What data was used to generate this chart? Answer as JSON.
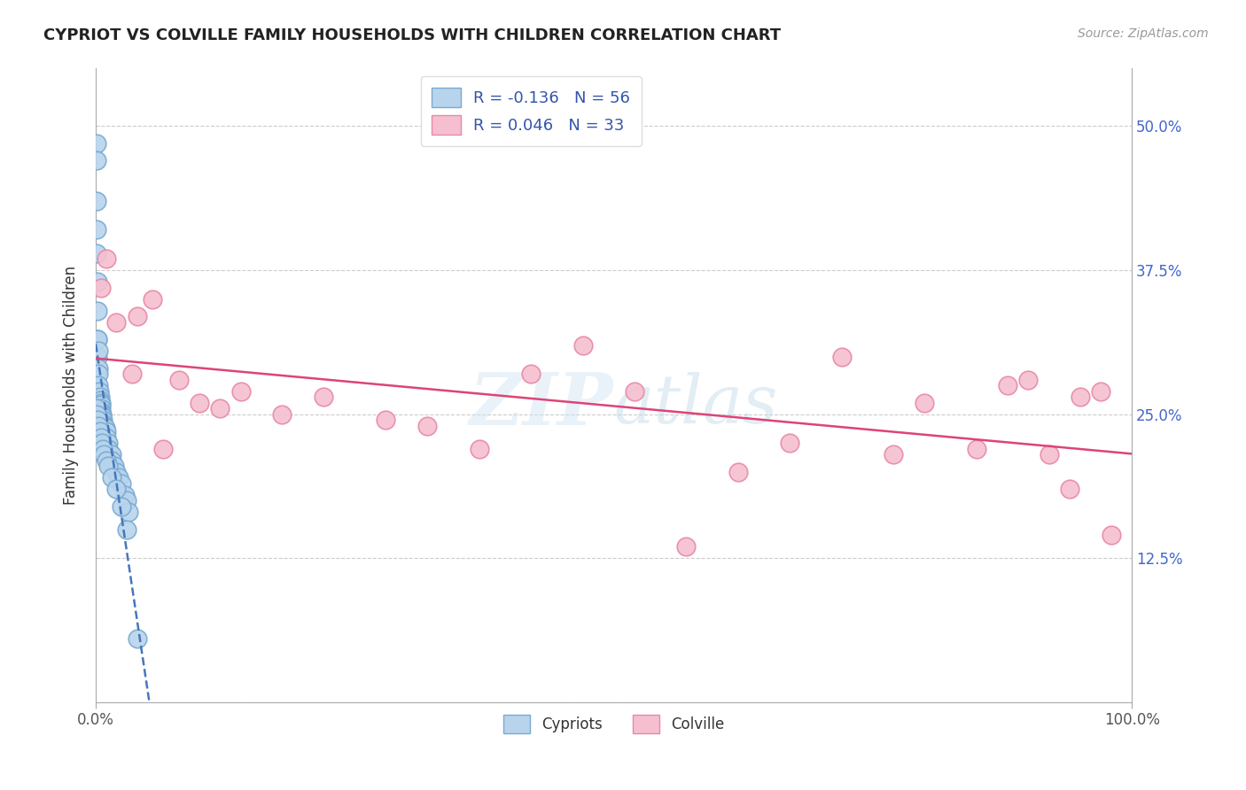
{
  "title": "CYPRIOT VS COLVILLE FAMILY HOUSEHOLDS WITH CHILDREN CORRELATION CHART",
  "source": "Source: ZipAtlas.com",
  "ylabel": "Family Households with Children",
  "xlim": [
    0.0,
    100.0
  ],
  "ylim": [
    0.0,
    55.0
  ],
  "x_ticks": [
    0.0,
    100.0
  ],
  "x_tick_labels": [
    "0.0%",
    "100.0%"
  ],
  "y_ticks": [
    0.0,
    12.5,
    25.0,
    37.5,
    50.0
  ],
  "y_tick_labels": [
    "",
    "12.5%",
    "25.0%",
    "37.5%",
    "50.0%"
  ],
  "cypriot_color": "#b8d4ed",
  "colville_color": "#f5bfd0",
  "cypriot_edge": "#7aaad0",
  "colville_edge": "#e888a8",
  "cypriot_R": -0.136,
  "cypriot_N": 56,
  "colville_R": 0.046,
  "colville_N": 33,
  "cypriot_line_color": "#4477bb",
  "colville_line_color": "#dd4477",
  "legend_label_cypriot": "Cypriots",
  "legend_label_colville": "Colville",
  "cypriot_x": [
    0.05,
    0.05,
    0.05,
    0.1,
    0.1,
    0.15,
    0.15,
    0.2,
    0.2,
    0.2,
    0.25,
    0.25,
    0.3,
    0.3,
    0.35,
    0.4,
    0.4,
    0.5,
    0.5,
    0.5,
    0.5,
    0.6,
    0.6,
    0.7,
    0.7,
    0.8,
    0.9,
    1.0,
    1.0,
    1.2,
    1.2,
    1.5,
    1.5,
    1.8,
    2.0,
    2.2,
    2.5,
    2.8,
    3.0,
    3.2,
    0.05,
    0.1,
    0.2,
    0.3,
    0.4,
    0.5,
    0.6,
    0.7,
    0.8,
    1.0,
    1.2,
    1.5,
    2.0,
    2.5,
    3.0,
    4.0
  ],
  "cypriot_y": [
    48.5,
    47.0,
    43.5,
    41.0,
    39.0,
    36.5,
    34.0,
    31.5,
    30.0,
    31.5,
    30.5,
    29.0,
    28.5,
    27.5,
    27.0,
    26.5,
    26.2,
    26.0,
    25.8,
    25.5,
    25.2,
    25.0,
    24.8,
    24.5,
    24.2,
    24.0,
    23.8,
    23.5,
    23.0,
    22.5,
    22.0,
    21.5,
    21.0,
    20.5,
    20.0,
    19.5,
    19.0,
    18.0,
    17.5,
    16.5,
    25.5,
    25.0,
    24.5,
    24.0,
    23.5,
    23.0,
    22.5,
    22.0,
    21.5,
    21.0,
    20.5,
    19.5,
    18.5,
    17.0,
    15.0,
    5.5
  ],
  "colville_x": [
    0.5,
    1.0,
    2.0,
    3.5,
    5.5,
    8.0,
    10.0,
    14.0,
    18.0,
    22.0,
    28.0,
    32.0,
    37.0,
    42.0,
    47.0,
    52.0,
    57.0,
    62.0,
    67.0,
    72.0,
    77.0,
    80.0,
    85.0,
    88.0,
    90.0,
    92.0,
    94.0,
    95.0,
    97.0,
    98.0,
    4.0,
    6.5,
    12.0
  ],
  "colville_y": [
    36.0,
    38.5,
    33.0,
    28.5,
    35.0,
    28.0,
    26.0,
    27.0,
    25.0,
    26.5,
    24.5,
    24.0,
    22.0,
    28.5,
    31.0,
    27.0,
    13.5,
    20.0,
    22.5,
    30.0,
    21.5,
    26.0,
    22.0,
    27.5,
    28.0,
    21.5,
    18.5,
    26.5,
    27.0,
    14.5,
    33.5,
    22.0,
    25.5
  ]
}
